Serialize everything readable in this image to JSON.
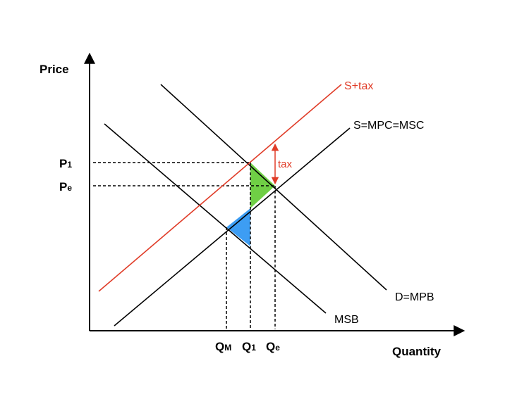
{
  "axes": {
    "y_label": "Price",
    "x_label": "Quantity"
  },
  "price_ticks": {
    "p1": {
      "main": "P",
      "sub": "1"
    },
    "pe": {
      "main": "P",
      "sub": "e"
    }
  },
  "quantity_ticks": {
    "qm": {
      "main": "Q",
      "sub": "M"
    },
    "q1": {
      "main": "Q",
      "sub": "1"
    },
    "qe": {
      "main": "Q",
      "sub": "e"
    }
  },
  "curves": {
    "supply_tax": "S+tax",
    "supply": "S=MPC=MSC",
    "demand": "D=MPB",
    "msb": "MSB"
  },
  "tax_arrow_label": "tax",
  "colors": {
    "axes": "#000000",
    "curves": "#000000",
    "tax": "#e03c28",
    "deadweight_green": "#6fcf45",
    "deadweight_blue": "#3d9df3"
  }
}
